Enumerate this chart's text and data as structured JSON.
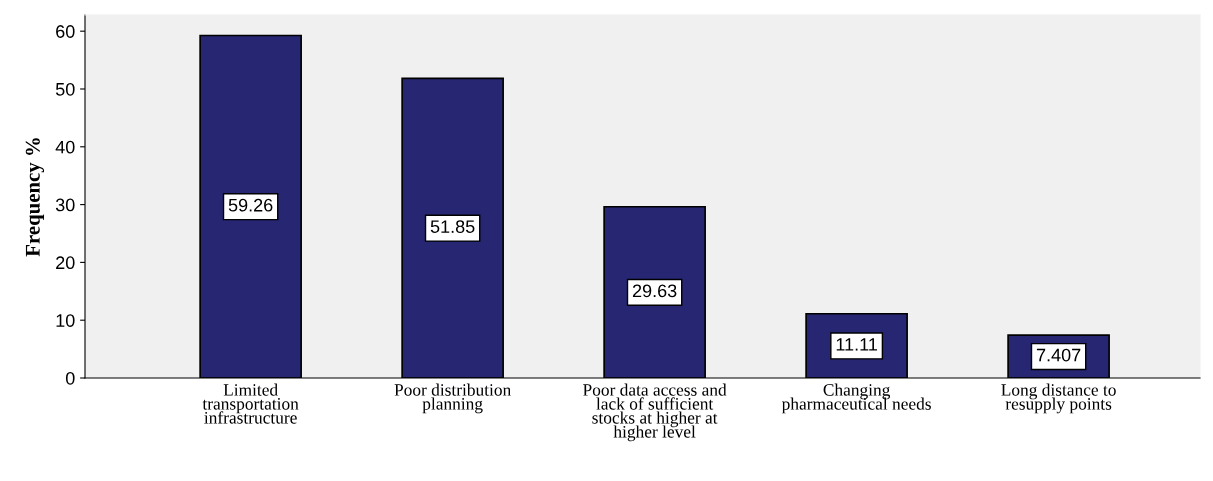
{
  "chart_data": {
    "type": "bar",
    "ylabel": "Frequency %",
    "categories": [
      "Limited\ntransportation\ninfrastructure",
      "Poor distribution\nplanning",
      "Poor data access and\nlack of sufficient\nstocks at higher at\nhigher level",
      "Changing\npharmaceutical needs",
      "Long distance to\nresupply points"
    ],
    "values": [
      59.26,
      51.85,
      29.63,
      11.11,
      7.407
    ],
    "color": "#262673",
    "ylim": [
      0,
      62.8
    ],
    "yticks": [
      0,
      10,
      20,
      30,
      40,
      50,
      60
    ],
    "data_labels": true,
    "grid": false,
    "legend": false
  }
}
